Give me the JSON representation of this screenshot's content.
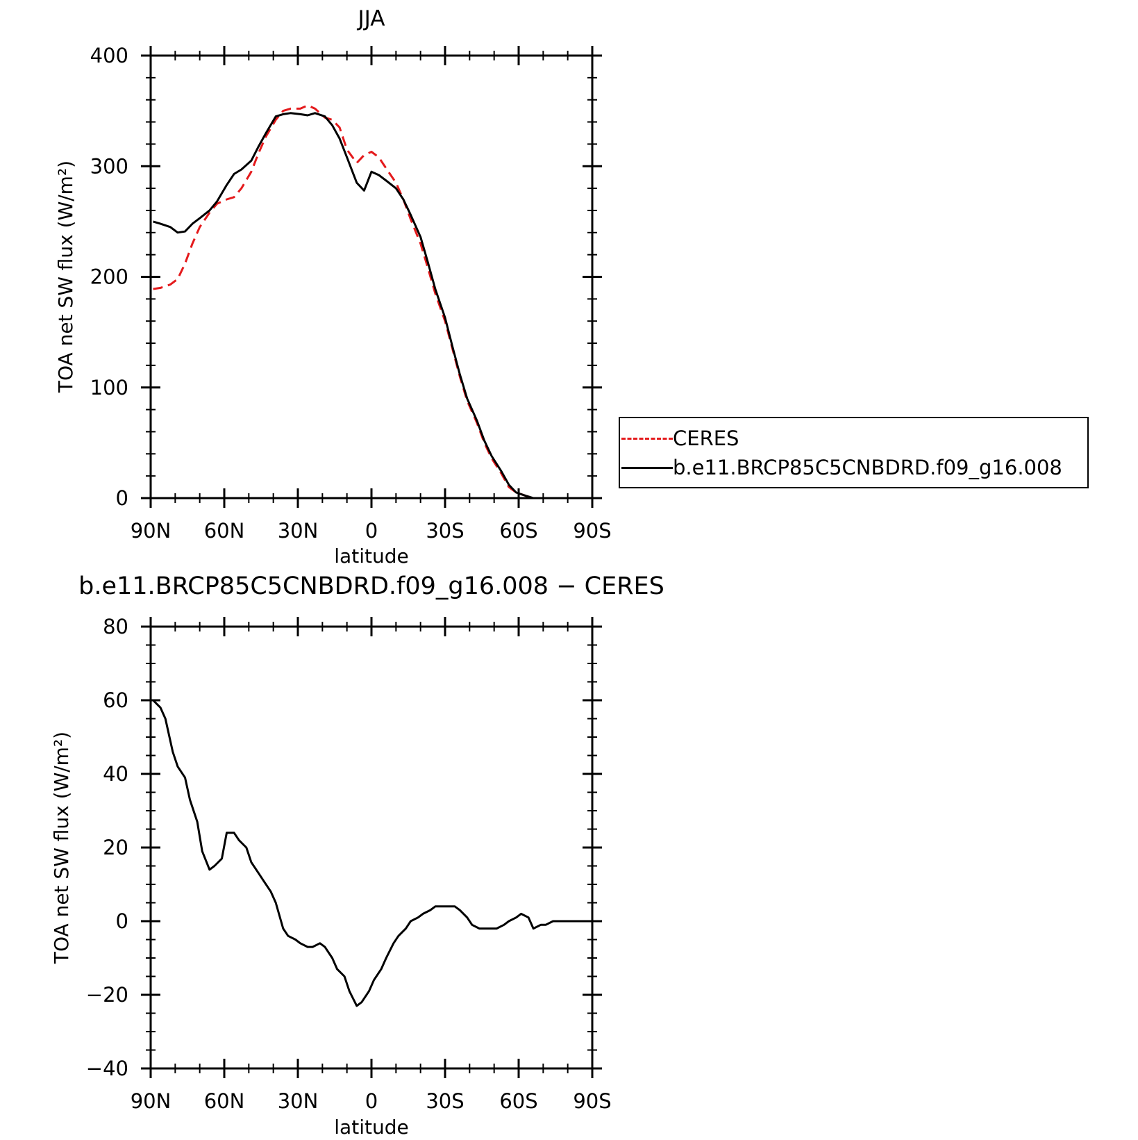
{
  "chart_data": [
    {
      "type": "line",
      "title": "JJA",
      "xlabel": "latitude",
      "ylabel": "TOA net SW flux (W/m²)",
      "xlim": [
        90,
        -90
      ],
      "ylim": [
        0,
        400
      ],
      "yticks": [
        "0",
        "100",
        "200",
        "300",
        "400"
      ],
      "xtick_values": [
        90,
        60,
        30,
        0,
        -30,
        -60,
        -90
      ],
      "xticks": [
        "90N",
        "60N",
        "30N",
        "0",
        "30S",
        "60S",
        "90S"
      ],
      "grid": false,
      "legend_position": "right",
      "series": [
        {
          "name": "CERES",
          "color": "#e41a1c",
          "dash": "dashed",
          "x": [
            89,
            86,
            82,
            79,
            76,
            73,
            70,
            66,
            63,
            59,
            56,
            53,
            49,
            46,
            43,
            39,
            36,
            33,
            29,
            26,
            23,
            19,
            16,
            13,
            10,
            6,
            3,
            0,
            -3,
            -6,
            -10,
            -13,
            -16,
            -20,
            -23,
            -26,
            -30,
            -33,
            -36,
            -39,
            -43,
            -46,
            -49,
            -53,
            -56,
            -59,
            -63,
            -66,
            -69,
            -72,
            -75,
            -78,
            -81,
            -84,
            -87,
            -89
          ],
          "y": [
            189,
            190,
            193,
            198,
            212,
            230,
            245,
            258,
            266,
            270,
            272,
            280,
            295,
            312,
            327,
            342,
            350,
            352,
            352,
            355,
            352,
            344,
            342,
            335,
            315,
            303,
            310,
            313,
            308,
            298,
            285,
            270,
            252,
            230,
            208,
            185,
            160,
            135,
            110,
            88,
            68,
            50,
            36,
            22,
            10,
            5,
            2,
            0,
            0,
            0,
            0,
            0,
            0,
            0,
            0,
            0
          ]
        },
        {
          "name": "b.e11.BRCP85C5CNBDRD.f09_g16.008",
          "color": "#000000",
          "dash": "solid",
          "x": [
            89,
            86,
            82,
            79,
            76,
            73,
            70,
            66,
            63,
            59,
            56,
            53,
            49,
            46,
            43,
            39,
            36,
            33,
            29,
            26,
            23,
            19,
            16,
            13,
            10,
            6,
            3,
            0,
            -3,
            -6,
            -10,
            -13,
            -16,
            -20,
            -23,
            -26,
            -30,
            -33,
            -36,
            -39,
            -43,
            -46,
            -49,
            -53,
            -56,
            -59,
            -63,
            -66,
            -69,
            -72,
            -75,
            -78,
            -81,
            -84,
            -87,
            -89
          ],
          "y": [
            250,
            248,
            245,
            240,
            241,
            248,
            253,
            260,
            268,
            283,
            293,
            297,
            305,
            318,
            330,
            345,
            347,
            348,
            347,
            346,
            348,
            345,
            337,
            325,
            308,
            285,
            278,
            295,
            292,
            287,
            280,
            270,
            256,
            236,
            213,
            189,
            163,
            137,
            112,
            90,
            70,
            52,
            38,
            24,
            12,
            5,
            2,
            0,
            0,
            0,
            0,
            0,
            0,
            0,
            0,
            0
          ]
        }
      ]
    },
    {
      "type": "line",
      "title": "b.e11.BRCP85C5CNBDRD.f09_g16.008 − CERES",
      "xlabel": "latitude",
      "ylabel": "TOA net SW flux (W/m²)",
      "xlim": [
        90,
        -90
      ],
      "ylim": [
        -40,
        80
      ],
      "yticks": [
        "−40",
        "−20",
        "0",
        "20",
        "40",
        "60",
        "80"
      ],
      "xtick_values": [
        90,
        60,
        30,
        0,
        -30,
        -60,
        -90
      ],
      "xticks": [
        "90N",
        "60N",
        "30N",
        "0",
        "30S",
        "60S",
        "90S"
      ],
      "grid": false,
      "series": [
        {
          "name": "b.e11.BRCP85C5CNBDRD.f09_g16.008 - CERES",
          "color": "#000000",
          "dash": "solid",
          "x": [
            89,
            86,
            84,
            81,
            79,
            76,
            74,
            71,
            69,
            66,
            64,
            61,
            59,
            56,
            54,
            51,
            49,
            46,
            44,
            41,
            39,
            36,
            34,
            31,
            29,
            26,
            24,
            21,
            19,
            16,
            14,
            11,
            9,
            6,
            4,
            1,
            -1,
            -4,
            -6,
            -9,
            -11,
            -14,
            -16,
            -19,
            -21,
            -24,
            -26,
            -29,
            -31,
            -34,
            -36,
            -39,
            -41,
            -44,
            -46,
            -49,
            -51,
            -54,
            -56,
            -59,
            -61,
            -64,
            -66,
            -69,
            -71,
            -74,
            -76,
            -79,
            -81,
            -84,
            -86,
            -89
          ],
          "y": [
            60,
            58,
            55,
            46,
            42,
            39,
            33,
            27,
            19,
            14,
            15,
            17,
            24,
            24,
            22,
            20,
            16,
            13,
            11,
            8,
            5,
            -2,
            -4,
            -5,
            -6,
            -7,
            -7,
            -6,
            -7,
            -10,
            -13,
            -15,
            -19,
            -23,
            -22,
            -19,
            -16,
            -13,
            -10,
            -6,
            -4,
            -2,
            0,
            1,
            2,
            3,
            4,
            4,
            4,
            4,
            3,
            1,
            -1,
            -2,
            -2,
            -2,
            -2,
            -1,
            0,
            1,
            2,
            1,
            -2,
            -1,
            -1,
            0,
            0,
            0,
            0,
            0,
            0,
            0
          ]
        }
      ]
    }
  ]
}
